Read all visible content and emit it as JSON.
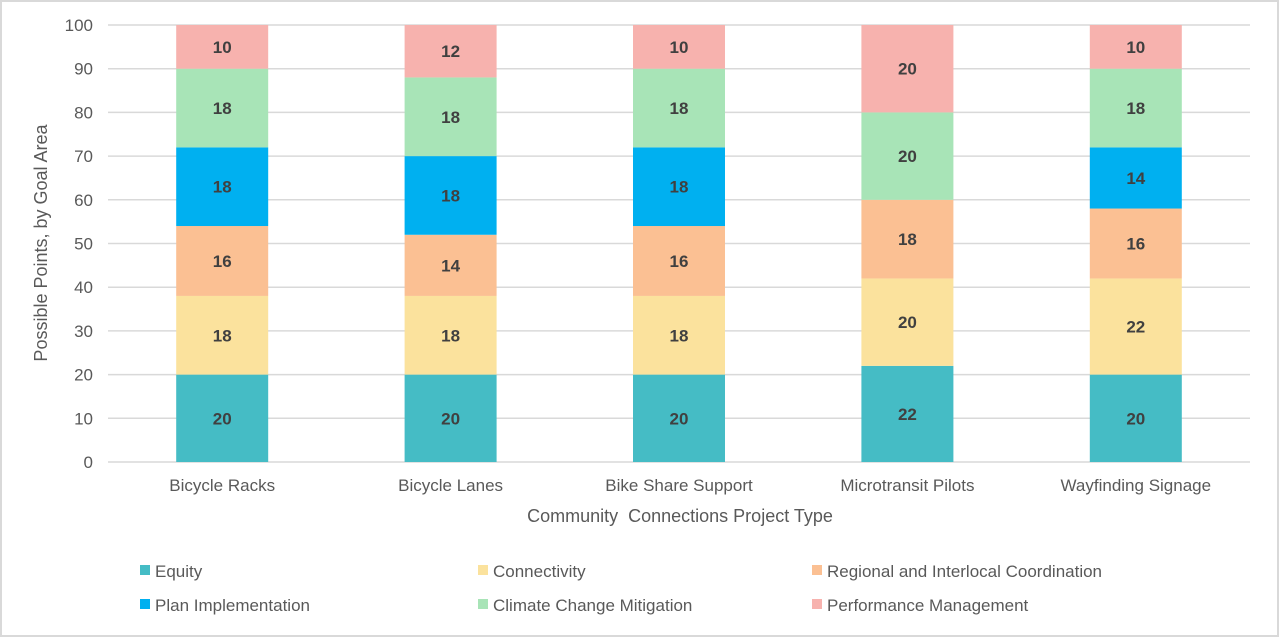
{
  "chart_data": {
    "type": "bar",
    "stacked": true,
    "title": "",
    "xlabel": "Community  Connections Project Type",
    "ylabel": "Possible Points, by Goal Area",
    "ylim": [
      0,
      100
    ],
    "yticks": [
      0,
      10,
      20,
      30,
      40,
      50,
      60,
      70,
      80,
      90,
      100
    ],
    "grid": true,
    "legend_position": "bottom",
    "categories": [
      "Bicycle Racks",
      "Bicycle Lanes",
      "Bike Share Support",
      "Microtransit Pilots",
      "Wayfinding Signage"
    ],
    "series": [
      {
        "name": "Equity",
        "color": "#45BCC5",
        "values": [
          20,
          20,
          20,
          22,
          20
        ]
      },
      {
        "name": "Connectivity",
        "color": "#FBE29D",
        "values": [
          18,
          18,
          18,
          20,
          22
        ]
      },
      {
        "name": "Regional and Interlocal Coordination",
        "color": "#FBC093",
        "values": [
          16,
          14,
          16,
          18,
          16
        ]
      },
      {
        "name": "Plan Implementation",
        "color": "#00B0F0",
        "values": [
          18,
          18,
          18,
          0,
          14
        ]
      },
      {
        "name": "Climate Change Mitigation",
        "color": "#A8E4B7",
        "values": [
          18,
          18,
          18,
          20,
          18
        ]
      },
      {
        "name": "Performance Management",
        "color": "#F7B2AE",
        "values": [
          10,
          12,
          10,
          20,
          10
        ]
      }
    ]
  }
}
